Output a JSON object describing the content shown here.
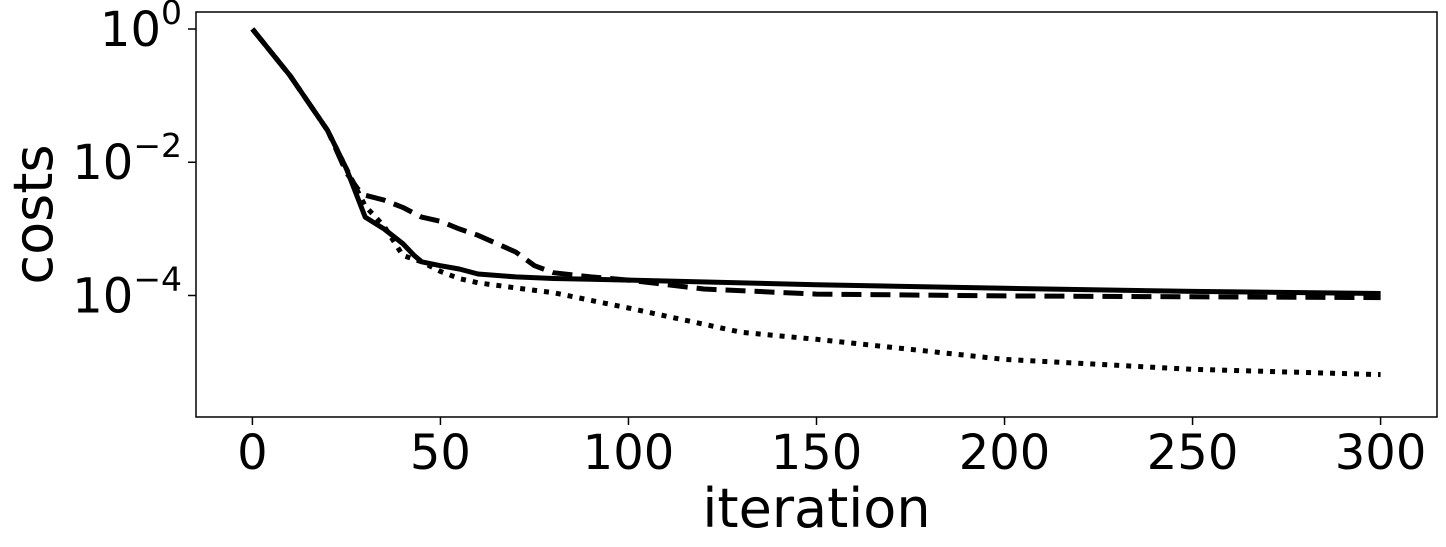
{
  "chart_data": {
    "type": "line",
    "xlabel": "iteration",
    "ylabel": "costs",
    "y_scale": "log",
    "xlim": [
      -15,
      315
    ],
    "ylim": [
      1.5e-06,
      1.8
    ],
    "x_ticks": [
      0,
      50,
      100,
      150,
      200,
      250,
      300
    ],
    "y_ticks": [
      {
        "value": 1,
        "base": "10",
        "exponent": "0"
      },
      {
        "value": 0.01,
        "base": "10",
        "exponent": "−2"
      },
      {
        "value": 0.0001,
        "base": "10",
        "exponent": "−4"
      }
    ],
    "grid": false,
    "legend": false,
    "series": [
      {
        "style": "solid",
        "color": "#000000",
        "points": [
          [
            0,
            1.0
          ],
          [
            10,
            0.2
          ],
          [
            20,
            0.03
          ],
          [
            25,
            0.008
          ],
          [
            30,
            0.0015
          ],
          [
            35,
            0.001
          ],
          [
            40,
            0.0006
          ],
          [
            43,
            0.0004
          ],
          [
            45,
            0.00032
          ],
          [
            50,
            0.00028
          ],
          [
            55,
            0.00025
          ],
          [
            60,
            0.00021
          ],
          [
            70,
            0.00019
          ],
          [
            80,
            0.00018
          ],
          [
            90,
            0.000175
          ],
          [
            100,
            0.00017
          ],
          [
            150,
            0.000145
          ],
          [
            200,
            0.000128
          ],
          [
            250,
            0.000115
          ],
          [
            300,
            0.000107
          ]
        ]
      },
      {
        "style": "dashed",
        "color": "#000000",
        "points": [
          [
            0,
            1.0
          ],
          [
            10,
            0.2
          ],
          [
            20,
            0.03
          ],
          [
            25,
            0.007
          ],
          [
            28,
            0.004
          ],
          [
            30,
            0.0032
          ],
          [
            35,
            0.0027
          ],
          [
            40,
            0.0021
          ],
          [
            45,
            0.0015
          ],
          [
            50,
            0.0013
          ],
          [
            55,
            0.001
          ],
          [
            60,
            0.0008
          ],
          [
            65,
            0.0006
          ],
          [
            70,
            0.00045
          ],
          [
            75,
            0.00028
          ],
          [
            80,
            0.00022
          ],
          [
            90,
            0.00019
          ],
          [
            100,
            0.00017
          ],
          [
            120,
            0.000125
          ],
          [
            150,
            0.000105
          ],
          [
            200,
            9.85e-05
          ],
          [
            250,
            9.55e-05
          ],
          [
            300,
            9.3e-05
          ]
        ]
      },
      {
        "style": "dotted",
        "color": "#000000",
        "points": [
          [
            0,
            1.0
          ],
          [
            10,
            0.2
          ],
          [
            20,
            0.03
          ],
          [
            25,
            0.008
          ],
          [
            30,
            0.0022
          ],
          [
            35,
            0.0011
          ],
          [
            40,
            0.0004
          ],
          [
            45,
            0.00032
          ],
          [
            50,
            0.00023
          ],
          [
            55,
            0.00018
          ],
          [
            60,
            0.000155
          ],
          [
            70,
            0.00013
          ],
          [
            80,
            0.00011
          ],
          [
            100,
            6.5e-05
          ],
          [
            130,
            2.8e-05
          ],
          [
            150,
            2.2e-05
          ],
          [
            200,
            1.1e-05
          ],
          [
            250,
            7.8e-06
          ],
          [
            300,
            6.5e-06
          ]
        ]
      }
    ]
  }
}
